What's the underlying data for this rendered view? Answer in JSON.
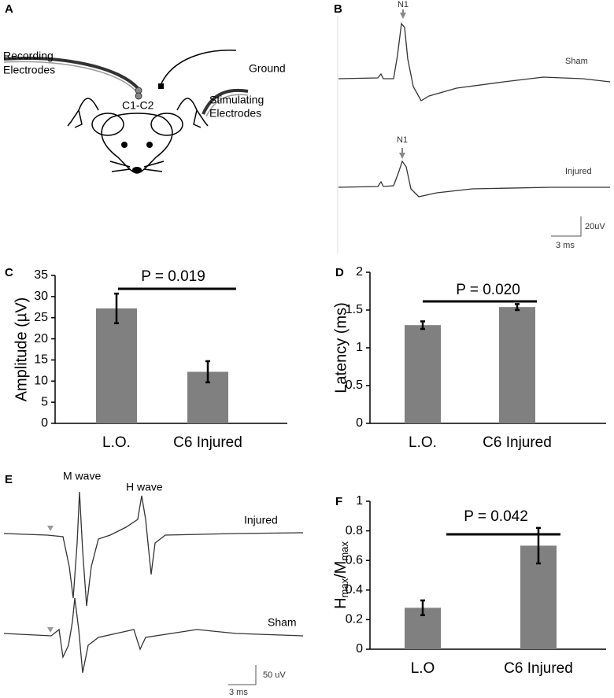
{
  "panel_labels": [
    "A",
    "B",
    "C",
    "D",
    "E",
    "F"
  ],
  "panel_a": {
    "recording": [
      "Recording",
      "Electrodes"
    ],
    "ground": "Ground",
    "site": "C1-C2",
    "stimulating": [
      "Stimulating",
      "Electrodes"
    ]
  },
  "panel_b": {
    "peak_sham": "N1",
    "trace_sham": "Sham",
    "peak_injured": "N1",
    "trace_injured": "Injured",
    "scale_y": "20uV",
    "scale_x": "3 ms"
  },
  "panel_e": {
    "m_wave": "M wave",
    "h_wave": "H wave",
    "trace_injured": "Injured",
    "trace_sham": "Sham",
    "scale_y": "50 uV",
    "scale_x": "3 ms"
  },
  "chart_data": [
    {
      "type": "bar",
      "ylabel": "Amplitude (µV)",
      "categories": [
        "L.O.",
        "C6 Injured"
      ],
      "values": [
        27.2,
        12.2
      ],
      "errors": [
        3.5,
        2.5
      ],
      "color": "#808080",
      "ylim": [
        0,
        35
      ],
      "yticks": [
        0,
        5,
        10,
        15,
        20,
        25,
        30,
        35
      ],
      "annotation": "P = 0.019"
    },
    {
      "type": "bar",
      "ylabel": "Latency (ms)",
      "categories": [
        "L.O.",
        "C6 Injured"
      ],
      "values": [
        1.3,
        1.54
      ],
      "errors": [
        0.05,
        0.04
      ],
      "color": "#808080",
      "ylim": [
        0,
        2
      ],
      "yticks": [
        0,
        0.5,
        1,
        1.5,
        2
      ],
      "annotation": "P = 0.020"
    },
    {
      "type": "bar",
      "ylabel_parts": [
        {
          "text": "H"
        },
        {
          "text": "max",
          "sub": true
        },
        {
          "text": "/M"
        },
        {
          "text": "max",
          "sub": true
        }
      ],
      "categories": [
        "L.O",
        "C6 Injured"
      ],
      "values": [
        0.28,
        0.7
      ],
      "errors": [
        0.05,
        0.12
      ],
      "color": "#808080",
      "ylim": [
        0,
        1
      ],
      "yticks": [
        0,
        0.2,
        0.4,
        0.6,
        0.8,
        1
      ],
      "annotation": "P = 0.042"
    }
  ]
}
